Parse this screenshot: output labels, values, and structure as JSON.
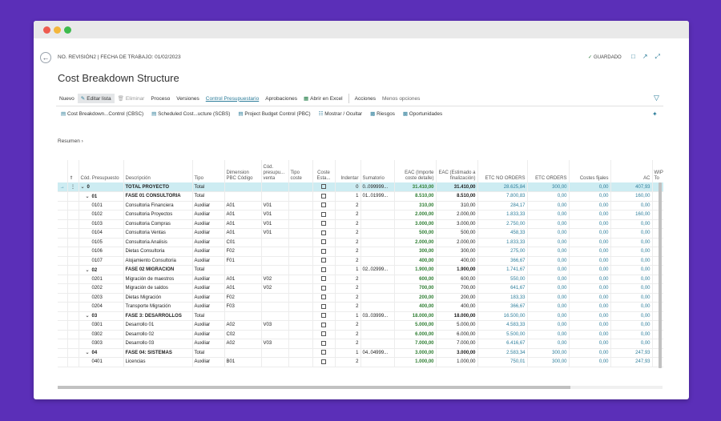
{
  "breadcrumb": "NO. REVISIÓN2 | FECHA DE TRABAJO: 01/02/2023",
  "status": "GUARDADO",
  "page_title": "Cost Breakdown Structure",
  "actions": {
    "nuevo": "Nuevo",
    "editar": "Editar lista",
    "eliminar": "Eliminar",
    "proceso": "Proceso",
    "versiones": "Versiones",
    "control": "Control Presupuestario",
    "aprobaciones": "Aprobaciones",
    "excel": "Abrir en Excel",
    "acciones": "Acciones",
    "menos": "Menos opciones"
  },
  "subactions": {
    "cbsc": "Cost Breakdown...Control (CBSC)",
    "scbs": "Scheduled Cost...ucture (SCBS)",
    "pbc": "Project Budget Control (PBC)",
    "mostrar": "Mostrar / Ocultar",
    "riesgos": "Riesgos",
    "oportunidades": "Oportunidades"
  },
  "resumen": "Resumen",
  "columns": {
    "cod": "Cód. Presupuesto",
    "desc": "Descripción",
    "tipo": "Tipo",
    "dim": "Dimension PBC Código",
    "codventa": "Cód. presupu... venta",
    "tipocoste": "Tipo coste",
    "costeest": "Coste Esta...",
    "indentar": "Indentar",
    "sumatorio": "Sumatorio",
    "eac": "EAC (Importe coste detalle)",
    "eacfin": "EAC (Estimado a finalización)",
    "etcno": "ETC NO ORDERS",
    "etc": "ETC ORDERS",
    "costes": "Costes fijales",
    "ac": "AC",
    "wip": "WIP-To"
  },
  "rows": [
    {
      "cod": "0",
      "desc": "TOTAL PROYECTO",
      "tipo": "Total",
      "dim": "",
      "cv": "",
      "ind": "0",
      "sum": "0..099999...",
      "eac": "31.410,00",
      "eacfin": "31.410,00",
      "etcno": "28.625,84",
      "etc": "300,00",
      "costes": "0,00",
      "ac": "407,93"
    },
    {
      "cod": "01",
      "desc": "FASE 01 CONSULTORIA",
      "tipo": "Total",
      "dim": "",
      "cv": "",
      "ind": "1",
      "sum": "01..01999...",
      "eac": "8.510,00",
      "eacfin": "8.510,00",
      "etcno": "7.800,83",
      "etc": "0,00",
      "costes": "0,00",
      "ac": "160,00"
    },
    {
      "cod": "0101",
      "desc": "Consultoria Financiera",
      "tipo": "Auxiliar",
      "dim": "A01",
      "cv": "V01",
      "ind": "2",
      "sum": "",
      "eac": "310,00",
      "eacfin": "310,00",
      "etcno": "284,17",
      "etc": "0,00",
      "costes": "0,00",
      "ac": "0,00"
    },
    {
      "cod": "0102",
      "desc": "Consultoria Proyectos",
      "tipo": "Auxiliar",
      "dim": "A01",
      "cv": "V01",
      "ind": "2",
      "sum": "",
      "eac": "2.000,00",
      "eacfin": "2.000,00",
      "etcno": "1.833,33",
      "etc": "0,00",
      "costes": "0,00",
      "ac": "160,00"
    },
    {
      "cod": "0103",
      "desc": "Consultoria Compras",
      "tipo": "Auxiliar",
      "dim": "A01",
      "cv": "V01",
      "ind": "2",
      "sum": "",
      "eac": "3.000,00",
      "eacfin": "3.000,00",
      "etcno": "2.750,00",
      "etc": "0,00",
      "costes": "0,00",
      "ac": "0,00"
    },
    {
      "cod": "0104",
      "desc": "Consultoria Ventas",
      "tipo": "Auxiliar",
      "dim": "A01",
      "cv": "V01",
      "ind": "2",
      "sum": "",
      "eac": "500,00",
      "eacfin": "500,00",
      "etcno": "458,33",
      "etc": "0,00",
      "costes": "0,00",
      "ac": "0,00"
    },
    {
      "cod": "0105",
      "desc": "Consultoria Analisis",
      "tipo": "Auxiliar",
      "dim": "C01",
      "cv": "",
      "ind": "2",
      "sum": "",
      "eac": "2.000,00",
      "eacfin": "2.000,00",
      "etcno": "1.833,33",
      "etc": "0,00",
      "costes": "0,00",
      "ac": "0,00"
    },
    {
      "cod": "0106",
      "desc": "Dietas Consultoria",
      "tipo": "Auxiliar",
      "dim": "F02",
      "cv": "",
      "ind": "2",
      "sum": "",
      "eac": "300,00",
      "eacfin": "300,00",
      "etcno": "275,00",
      "etc": "0,00",
      "costes": "0,00",
      "ac": "0,00"
    },
    {
      "cod": "0107",
      "desc": "Alojamiento Consultoria",
      "tipo": "Auxiliar",
      "dim": "F01",
      "cv": "",
      "ind": "2",
      "sum": "",
      "eac": "400,00",
      "eacfin": "400,00",
      "etcno": "366,67",
      "etc": "0,00",
      "costes": "0,00",
      "ac": "0,00"
    },
    {
      "cod": "02",
      "desc": "FASE 02 MIGRACION",
      "tipo": "Total",
      "dim": "",
      "cv": "",
      "ind": "1",
      "sum": "02..02999...",
      "eac": "1.900,00",
      "eacfin": "1.900,00",
      "etcno": "1.741,67",
      "etc": "0,00",
      "costes": "0,00",
      "ac": "0,00"
    },
    {
      "cod": "0201",
      "desc": "Migración de maestros",
      "tipo": "Auxiliar",
      "dim": "A01",
      "cv": "V02",
      "ind": "2",
      "sum": "",
      "eac": "600,00",
      "eacfin": "600,00",
      "etcno": "550,00",
      "etc": "0,00",
      "costes": "0,00",
      "ac": "0,00"
    },
    {
      "cod": "0202",
      "desc": "Migración de saldos",
      "tipo": "Auxiliar",
      "dim": "A01",
      "cv": "V02",
      "ind": "2",
      "sum": "",
      "eac": "700,00",
      "eacfin": "700,00",
      "etcno": "641,67",
      "etc": "0,00",
      "costes": "0,00",
      "ac": "0,00"
    },
    {
      "cod": "0203",
      "desc": "Dietas Migración",
      "tipo": "Auxiliar",
      "dim": "F02",
      "cv": "",
      "ind": "2",
      "sum": "",
      "eac": "200,00",
      "eacfin": "200,00",
      "etcno": "183,33",
      "etc": "0,00",
      "costes": "0,00",
      "ac": "0,00"
    },
    {
      "cod": "0204",
      "desc": "Transporte Migración",
      "tipo": "Auxiliar",
      "dim": "F03",
      "cv": "",
      "ind": "2",
      "sum": "",
      "eac": "400,00",
      "eacfin": "400,00",
      "etcno": "366,67",
      "etc": "0,00",
      "costes": "0,00",
      "ac": "0,00"
    },
    {
      "cod": "03",
      "desc": "FASE 3: DESARROLLOS",
      "tipo": "Total",
      "dim": "",
      "cv": "",
      "ind": "1",
      "sum": "03..03999...",
      "eac": "18.000,00",
      "eacfin": "18.000,00",
      "etcno": "16.500,00",
      "etc": "0,00",
      "costes": "0,00",
      "ac": "0,00"
    },
    {
      "cod": "0301",
      "desc": "Desarrollo 01",
      "tipo": "Auxiliar",
      "dim": "A02",
      "cv": "V03",
      "ind": "2",
      "sum": "",
      "eac": "5.000,00",
      "eacfin": "5.000,00",
      "etcno": "4.583,33",
      "etc": "0,00",
      "costes": "0,00",
      "ac": "0,00"
    },
    {
      "cod": "0302",
      "desc": "Desarrollo 02",
      "tipo": "Auxiliar",
      "dim": "C02",
      "cv": "",
      "ind": "2",
      "sum": "",
      "eac": "6.000,00",
      "eacfin": "6.000,00",
      "etcno": "5.500,00",
      "etc": "0,00",
      "costes": "0,00",
      "ac": "0,00"
    },
    {
      "cod": "0303",
      "desc": "Desarrollo 03",
      "tipo": "Auxiliar",
      "dim": "A02",
      "cv": "V03",
      "ind": "2",
      "sum": "",
      "eac": "7.000,00",
      "eacfin": "7.000,00",
      "etcno": "6.416,67",
      "etc": "0,00",
      "costes": "0,00",
      "ac": "0,00"
    },
    {
      "cod": "04",
      "desc": "FASE 04: SISTEMAS",
      "tipo": "Total",
      "dim": "",
      "cv": "",
      "ind": "1",
      "sum": "04..04999...",
      "eac": "3.000,00",
      "eacfin": "3.000,00",
      "etcno": "2.583,34",
      "etc": "300,00",
      "costes": "0,00",
      "ac": "247,93"
    },
    {
      "cod": "0401",
      "desc": "Licencias",
      "tipo": "Auxiliar",
      "dim": "B01",
      "cv": "",
      "ind": "2",
      "sum": "",
      "eac": "1.000,00",
      "eacfin": "1.000,00",
      "etcno": "750,01",
      "etc": "300,00",
      "costes": "0,00",
      "ac": "247,93"
    }
  ]
}
